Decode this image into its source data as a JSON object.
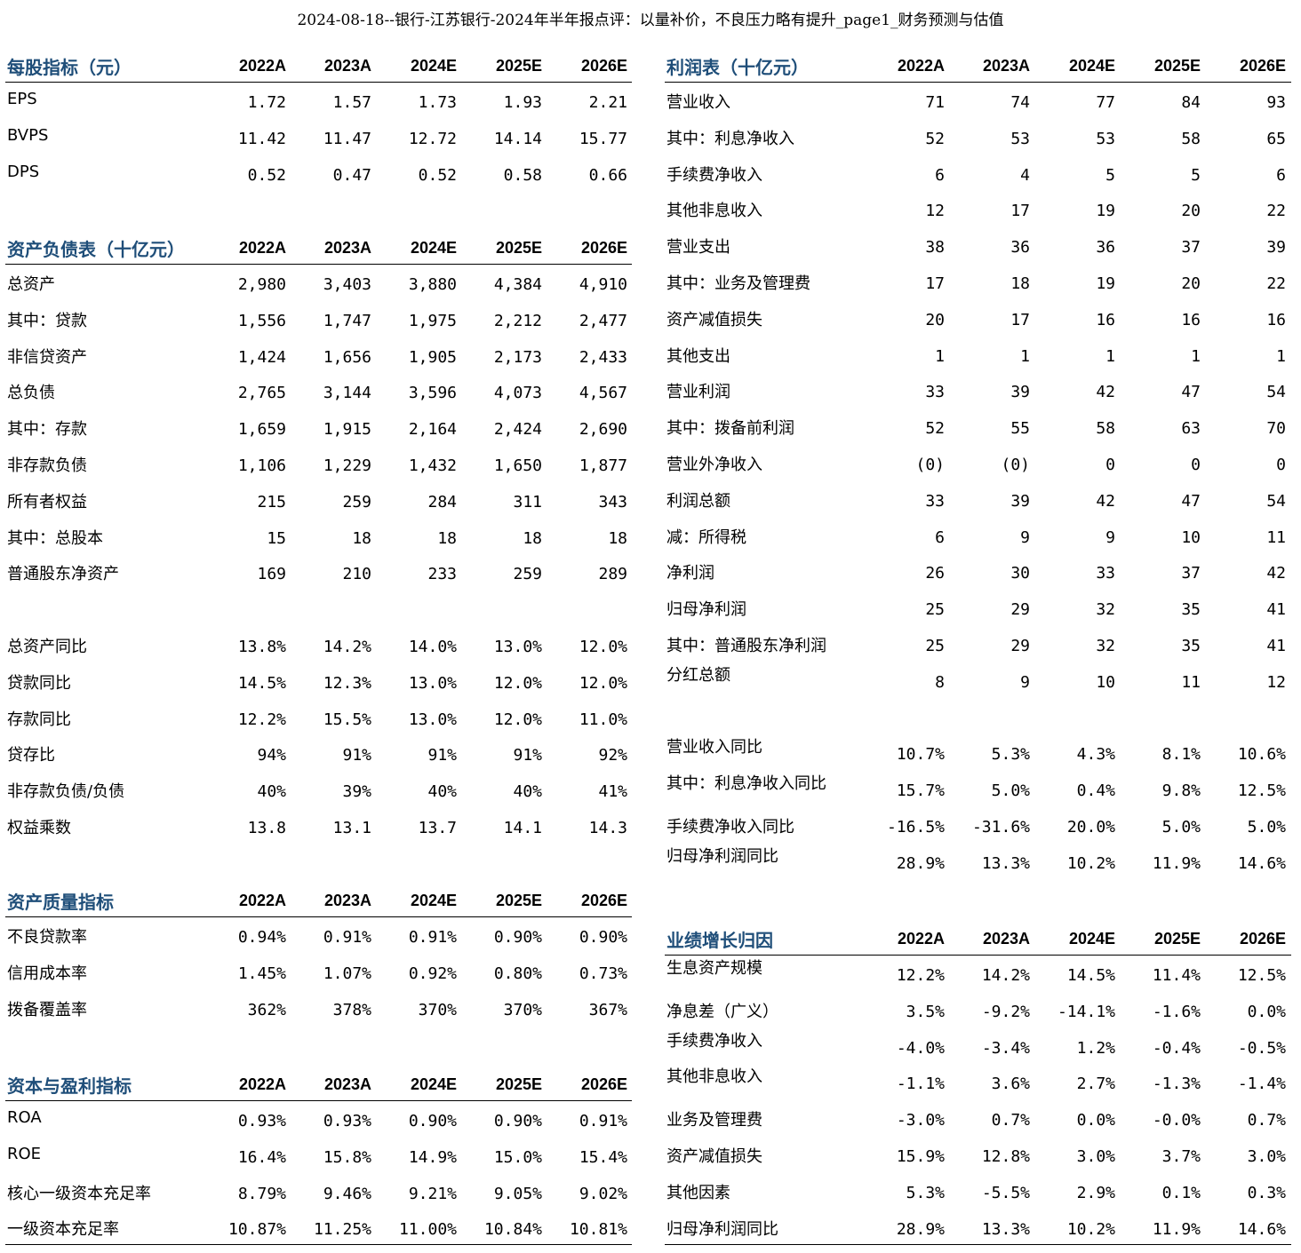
{
  "title": "2024-08-18--银行-江苏银行-2024年半年报点评：以量补价，不良压力略有提升_page1_财务预测与估值",
  "years": [
    "2022A",
    "2023A",
    "2024E",
    "2025E",
    "2026E"
  ],
  "per_share": {
    "title": "每股指标（元）",
    "rows": [
      {
        "label": "EPS",
        "values": [
          "1.72",
          "1.57",
          "1.73",
          "1.93",
          "2.21"
        ]
      },
      {
        "label": "BVPS",
        "values": [
          "11.42",
          "11.47",
          "12.72",
          "14.14",
          "15.77"
        ]
      },
      {
        "label": "DPS",
        "values": [
          "0.52",
          "0.47",
          "0.52",
          "0.58",
          "0.66"
        ]
      }
    ]
  },
  "balance_sheet": {
    "title": "资产负债表（十亿元）",
    "rows": [
      {
        "label": "总资产",
        "values": [
          "2,980",
          "3,403",
          "3,880",
          "4,384",
          "4,910"
        ]
      },
      {
        "label": "其中：贷款",
        "values": [
          "1,556",
          "1,747",
          "1,975",
          "2,212",
          "2,477"
        ]
      },
      {
        "label": "非信贷资产",
        "values": [
          "1,424",
          "1,656",
          "1,905",
          "2,173",
          "2,433"
        ]
      },
      {
        "label": "总负债",
        "values": [
          "2,765",
          "3,144",
          "3,596",
          "4,073",
          "4,567"
        ]
      },
      {
        "label": "其中：存款",
        "values": [
          "1,659",
          "1,915",
          "2,164",
          "2,424",
          "2,690"
        ]
      },
      {
        "label": "非存款负债",
        "values": [
          "1,106",
          "1,229",
          "1,432",
          "1,650",
          "1,877"
        ]
      },
      {
        "label": "所有者权益",
        "values": [
          "215",
          "259",
          "284",
          "311",
          "343"
        ]
      },
      {
        "label": "其中：总股本",
        "values": [
          "15",
          "18",
          "18",
          "18",
          "18"
        ]
      },
      {
        "label": "普通股东净资产",
        "values": [
          "169",
          "210",
          "233",
          "259",
          "289"
        ]
      },
      {
        "label": "",
        "values": [
          "",
          "",
          "",
          "",
          ""
        ]
      },
      {
        "label": "总资产同比",
        "values": [
          "13.8%",
          "14.2%",
          "14.0%",
          "13.0%",
          "12.0%"
        ]
      },
      {
        "label": "贷款同比",
        "values": [
          "14.5%",
          "12.3%",
          "13.0%",
          "12.0%",
          "12.0%"
        ]
      },
      {
        "label": "存款同比",
        "values": [
          "12.2%",
          "15.5%",
          "13.0%",
          "12.0%",
          "11.0%"
        ]
      },
      {
        "label": "贷存比",
        "values": [
          "94%",
          "91%",
          "91%",
          "91%",
          "92%"
        ]
      },
      {
        "label": "非存款负债/负债",
        "values": [
          "40%",
          "39%",
          "40%",
          "40%",
          "41%"
        ]
      },
      {
        "label": "权益乘数",
        "values": [
          "13.8",
          "13.1",
          "13.7",
          "14.1",
          "14.3"
        ]
      }
    ]
  },
  "asset_quality": {
    "title": "资产质量指标",
    "rows": [
      {
        "label": "不良贷款率",
        "values": [
          "0.94%",
          "0.91%",
          "0.91%",
          "0.90%",
          "0.90%"
        ]
      },
      {
        "label": "信用成本率",
        "values": [
          "1.45%",
          "1.07%",
          "0.92%",
          "0.80%",
          "0.73%"
        ]
      },
      {
        "label": "拨备覆盖率",
        "values": [
          "362%",
          "378%",
          "370%",
          "370%",
          "367%"
        ]
      }
    ]
  },
  "capital": {
    "title": "资本与盈利指标",
    "rows": [
      {
        "label": "ROA",
        "values": [
          "0.93%",
          "0.93%",
          "0.90%",
          "0.90%",
          "0.91%"
        ]
      },
      {
        "label": "ROE",
        "values": [
          "16.4%",
          "15.8%",
          "14.9%",
          "15.0%",
          "15.4%"
        ]
      },
      {
        "label": "核心一级资本充足率",
        "values": [
          "8.79%",
          "9.46%",
          "9.21%",
          "9.05%",
          "9.02%"
        ]
      },
      {
        "label": "一级资本充足率",
        "values": [
          "10.87%",
          "11.25%",
          "11.00%",
          "10.84%",
          "10.81%"
        ]
      }
    ]
  },
  "income": {
    "title": "利润表（十亿元）",
    "rows": [
      {
        "label": "营业收入",
        "values": [
          "71",
          "74",
          "77",
          "84",
          "93"
        ]
      },
      {
        "label": "其中：利息净收入",
        "values": [
          "52",
          "53",
          "53",
          "58",
          "65"
        ]
      },
      {
        "label": "手续费净收入",
        "values": [
          "6",
          "4",
          "5",
          "5",
          "6"
        ]
      },
      {
        "label": "其他非息收入",
        "values": [
          "12",
          "17",
          "19",
          "20",
          "22"
        ]
      },
      {
        "label": "营业支出",
        "values": [
          "38",
          "36",
          "36",
          "37",
          "39"
        ]
      },
      {
        "label": "其中：业务及管理费",
        "values": [
          "17",
          "18",
          "19",
          "20",
          "22"
        ]
      },
      {
        "label": "资产减值损失",
        "values": [
          "20",
          "17",
          "16",
          "16",
          "16"
        ]
      },
      {
        "label": "其他支出",
        "values": [
          "1",
          "1",
          "1",
          "1",
          "1"
        ]
      },
      {
        "label": "营业利润",
        "values": [
          "33",
          "39",
          "42",
          "47",
          "54"
        ]
      },
      {
        "label": "其中：拨备前利润",
        "values": [
          "52",
          "55",
          "58",
          "63",
          "70"
        ]
      },
      {
        "label": "营业外净收入",
        "values": [
          "(0)",
          "(0)",
          "0",
          "0",
          "0"
        ]
      },
      {
        "label": "利润总额",
        "values": [
          "33",
          "39",
          "42",
          "47",
          "54"
        ]
      },
      {
        "label": "减：所得税",
        "values": [
          "6",
          "9",
          "9",
          "10",
          "11"
        ]
      },
      {
        "label": "净利润",
        "values": [
          "26",
          "30",
          "33",
          "37",
          "42"
        ]
      },
      {
        "label": "归母净利润",
        "values": [
          "25",
          "29",
          "32",
          "35",
          "41"
        ]
      },
      {
        "label": "其中：普通股东净利润",
        "values": [
          "25",
          "29",
          "32",
          "35",
          "41"
        ]
      },
      {
        "label": "分红总额",
        "values": [
          "8",
          "9",
          "10",
          "11",
          "12"
        ],
        "lift": true
      },
      {
        "label": "",
        "values": [
          "",
          "",
          "",
          "",
          ""
        ]
      },
      {
        "label": "营业收入同比",
        "values": [
          "10.7%",
          "5.3%",
          "4.3%",
          "8.1%",
          "10.6%"
        ],
        "lift": true
      },
      {
        "label": "其中：利息净收入同比",
        "values": [
          "15.7%",
          "5.0%",
          "0.4%",
          "9.8%",
          "12.5%"
        ],
        "lift": true
      },
      {
        "label": "手续费净收入同比",
        "values": [
          "-16.5%",
          "-31.6%",
          "20.0%",
          "5.0%",
          "5.0%"
        ]
      },
      {
        "label": "归母净利润同比",
        "values": [
          "28.9%",
          "13.3%",
          "10.2%",
          "11.9%",
          "14.6%"
        ],
        "lift": true
      }
    ]
  },
  "growth": {
    "title": "业绩增长归因",
    "rows": [
      {
        "label": "生息资产规模",
        "values": [
          "12.2%",
          "14.2%",
          "14.5%",
          "11.4%",
          "12.5%"
        ],
        "lift": true
      },
      {
        "label": "净息差（广义）",
        "values": [
          "3.5%",
          "-9.2%",
          "-14.1%",
          "-1.6%",
          "0.0%"
        ]
      },
      {
        "label": "手续费净收入",
        "values": [
          "-4.0%",
          "-3.4%",
          "1.2%",
          "-0.4%",
          "-0.5%"
        ],
        "lift": true
      },
      {
        "label": "其他非息收入",
        "values": [
          "-1.1%",
          "3.6%",
          "2.7%",
          "-1.3%",
          "-1.4%"
        ],
        "lift": true
      },
      {
        "label": "业务及管理费",
        "values": [
          "-3.0%",
          "0.7%",
          "0.0%",
          "-0.0%",
          "0.7%"
        ]
      },
      {
        "label": "资产减值损失",
        "values": [
          "15.9%",
          "12.8%",
          "3.0%",
          "3.7%",
          "3.0%"
        ]
      },
      {
        "label": "其他因素",
        "values": [
          "5.3%",
          "-5.5%",
          "2.9%",
          "0.1%",
          "0.3%"
        ]
      },
      {
        "label": "归母净利润同比",
        "values": [
          "28.9%",
          "13.3%",
          "10.2%",
          "11.9%",
          "14.6%"
        ]
      }
    ]
  }
}
